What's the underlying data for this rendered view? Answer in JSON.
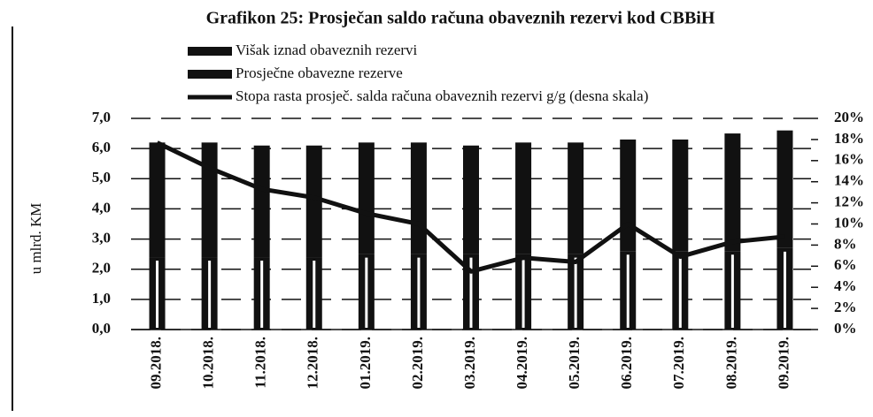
{
  "chart_data": {
    "type": "bar",
    "title": "Grafikon 25: Prosječan saldo računa obaveznih rezervi kod CBBiH",
    "y_label": "u mlrd. KM",
    "categories": [
      "09.2018.",
      "10.2018.",
      "11.2018.",
      "12.2018.",
      "01.2019.",
      "02.2019.",
      "03.2019.",
      "04.2019.",
      "05.2019.",
      "06.2019.",
      "07.2019.",
      "08.2019.",
      "09.2019."
    ],
    "series": [
      {
        "name": "Prosječne obavezne rezerve",
        "color": "#111111",
        "values": [
          2.4,
          2.4,
          2.4,
          2.4,
          2.5,
          2.5,
          2.5,
          2.5,
          2.5,
          2.6,
          2.6,
          2.6,
          2.7
        ]
      },
      {
        "name": "Višak iznad obaveznih rezervi",
        "color": "#111111",
        "values": [
          3.8,
          3.8,
          3.7,
          3.7,
          3.7,
          3.7,
          3.6,
          3.7,
          3.7,
          3.7,
          3.7,
          3.9,
          3.9
        ]
      },
      {
        "name": "Stopa rasta prosječ. salda računa obaveznih rezervi g/g (desna skala)",
        "type": "line",
        "axis": "y2",
        "color": "#111111",
        "values": [
          17.7,
          15.3,
          13.3,
          12.5,
          11.0,
          10.0,
          5.5,
          6.8,
          6.4,
          10.0,
          6.9,
          8.3,
          8.8
        ]
      }
    ],
    "legend_order": [
      1,
      0,
      2
    ],
    "ylim": [
      0,
      7
    ],
    "yticks": [
      {
        "value": 0,
        "label": "0,0"
      },
      {
        "value": 1,
        "label": "1,0"
      },
      {
        "value": 2,
        "label": "2,0"
      },
      {
        "value": 3,
        "label": "3,0"
      },
      {
        "value": 4,
        "label": "4,0"
      },
      {
        "value": 5,
        "label": "5,0"
      },
      {
        "value": 6,
        "label": "6,0"
      },
      {
        "value": 7,
        "label": "7,0"
      }
    ],
    "y2lim": [
      0,
      20
    ],
    "y2ticks": [
      {
        "value": 0,
        "label": "0%"
      },
      {
        "value": 2,
        "label": "2%"
      },
      {
        "value": 4,
        "label": "4%"
      },
      {
        "value": 6,
        "label": "6%"
      },
      {
        "value": 8,
        "label": "8%"
      },
      {
        "value": 10,
        "label": "10%"
      },
      {
        "value": 12,
        "label": "12%"
      },
      {
        "value": 14,
        "label": "14%"
      },
      {
        "value": 16,
        "label": "16%"
      },
      {
        "value": 18,
        "label": "18%"
      },
      {
        "value": 20,
        "label": "20%"
      }
    ],
    "grid": true
  }
}
